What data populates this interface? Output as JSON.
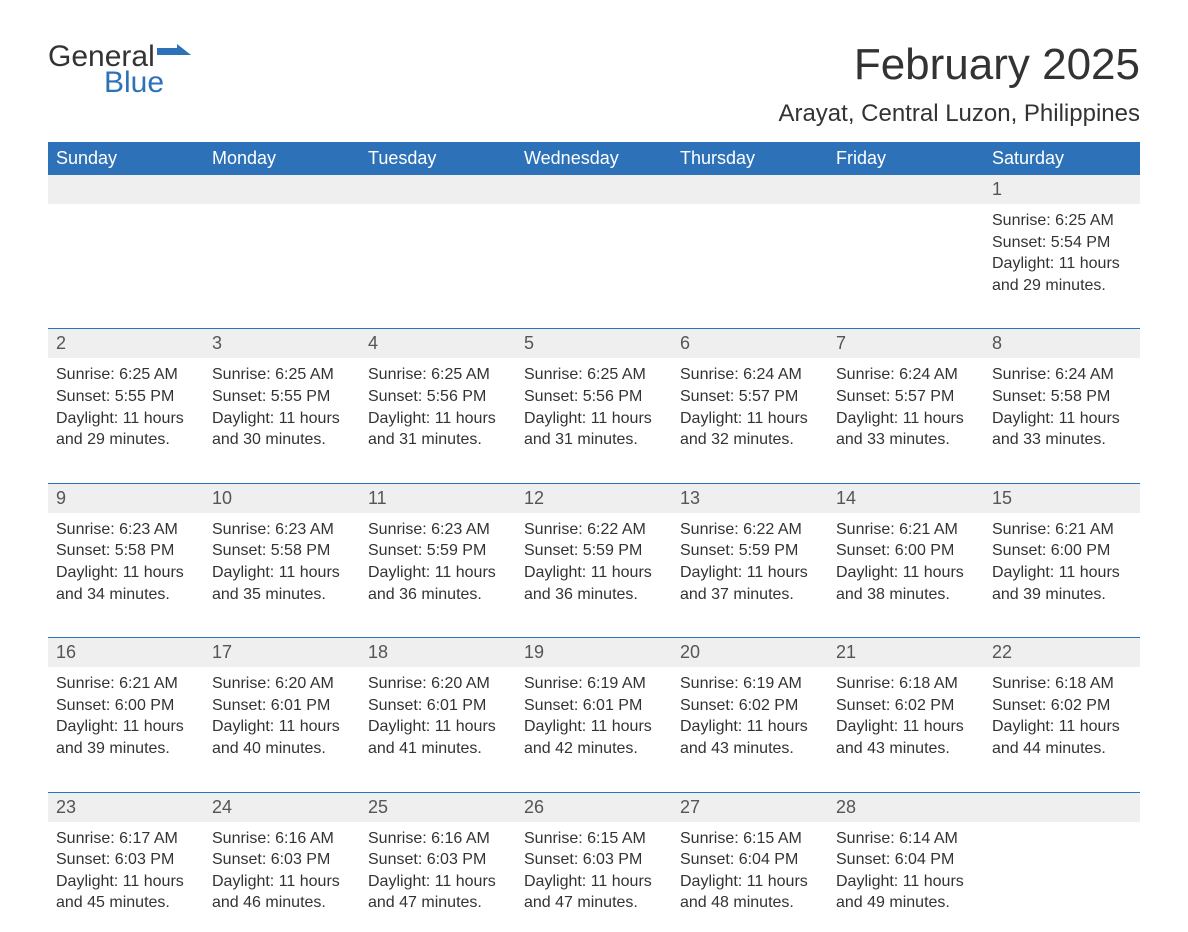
{
  "logo": {
    "word1": "General",
    "word2": "Blue",
    "flag_color": "#2d72b8"
  },
  "title": "February 2025",
  "location": "Arayat, Central Luzon, Philippines",
  "colors": {
    "header_bg": "#2d72b8",
    "header_text": "#ffffff",
    "date_row_bg": "#efefef",
    "body_text": "#333333",
    "date_text": "#555555",
    "rule": "#2d72b8",
    "background": "#ffffff"
  },
  "fonts": {
    "title_pt": 44,
    "location_pt": 24,
    "dayheader_pt": 18,
    "datenum_pt": 18,
    "body_pt": 16
  },
  "day_labels": [
    "Sunday",
    "Monday",
    "Tuesday",
    "Wednesday",
    "Thursday",
    "Friday",
    "Saturday"
  ],
  "labels": {
    "sunrise_prefix": "Sunrise: ",
    "sunset_prefix": "Sunset: ",
    "daylight_prefix": "Daylight: ",
    "hours_word": " hours",
    "and_word": "and ",
    "minutes_suffix": " minutes."
  },
  "weeks": [
    [
      null,
      null,
      null,
      null,
      null,
      null,
      {
        "n": "1",
        "sunrise": "6:25 AM",
        "sunset": "5:54 PM",
        "dl_h": "11",
        "dl_m": "29"
      }
    ],
    [
      {
        "n": "2",
        "sunrise": "6:25 AM",
        "sunset": "5:55 PM",
        "dl_h": "11",
        "dl_m": "29"
      },
      {
        "n": "3",
        "sunrise": "6:25 AM",
        "sunset": "5:55 PM",
        "dl_h": "11",
        "dl_m": "30"
      },
      {
        "n": "4",
        "sunrise": "6:25 AM",
        "sunset": "5:56 PM",
        "dl_h": "11",
        "dl_m": "31"
      },
      {
        "n": "5",
        "sunrise": "6:25 AM",
        "sunset": "5:56 PM",
        "dl_h": "11",
        "dl_m": "31"
      },
      {
        "n": "6",
        "sunrise": "6:24 AM",
        "sunset": "5:57 PM",
        "dl_h": "11",
        "dl_m": "32"
      },
      {
        "n": "7",
        "sunrise": "6:24 AM",
        "sunset": "5:57 PM",
        "dl_h": "11",
        "dl_m": "33"
      },
      {
        "n": "8",
        "sunrise": "6:24 AM",
        "sunset": "5:58 PM",
        "dl_h": "11",
        "dl_m": "33"
      }
    ],
    [
      {
        "n": "9",
        "sunrise": "6:23 AM",
        "sunset": "5:58 PM",
        "dl_h": "11",
        "dl_m": "34"
      },
      {
        "n": "10",
        "sunrise": "6:23 AM",
        "sunset": "5:58 PM",
        "dl_h": "11",
        "dl_m": "35"
      },
      {
        "n": "11",
        "sunrise": "6:23 AM",
        "sunset": "5:59 PM",
        "dl_h": "11",
        "dl_m": "36"
      },
      {
        "n": "12",
        "sunrise": "6:22 AM",
        "sunset": "5:59 PM",
        "dl_h": "11",
        "dl_m": "36"
      },
      {
        "n": "13",
        "sunrise": "6:22 AM",
        "sunset": "5:59 PM",
        "dl_h": "11",
        "dl_m": "37"
      },
      {
        "n": "14",
        "sunrise": "6:21 AM",
        "sunset": "6:00 PM",
        "dl_h": "11",
        "dl_m": "38"
      },
      {
        "n": "15",
        "sunrise": "6:21 AM",
        "sunset": "6:00 PM",
        "dl_h": "11",
        "dl_m": "39"
      }
    ],
    [
      {
        "n": "16",
        "sunrise": "6:21 AM",
        "sunset": "6:00 PM",
        "dl_h": "11",
        "dl_m": "39"
      },
      {
        "n": "17",
        "sunrise": "6:20 AM",
        "sunset": "6:01 PM",
        "dl_h": "11",
        "dl_m": "40"
      },
      {
        "n": "18",
        "sunrise": "6:20 AM",
        "sunset": "6:01 PM",
        "dl_h": "11",
        "dl_m": "41"
      },
      {
        "n": "19",
        "sunrise": "6:19 AM",
        "sunset": "6:01 PM",
        "dl_h": "11",
        "dl_m": "42"
      },
      {
        "n": "20",
        "sunrise": "6:19 AM",
        "sunset": "6:02 PM",
        "dl_h": "11",
        "dl_m": "43"
      },
      {
        "n": "21",
        "sunrise": "6:18 AM",
        "sunset": "6:02 PM",
        "dl_h": "11",
        "dl_m": "43"
      },
      {
        "n": "22",
        "sunrise": "6:18 AM",
        "sunset": "6:02 PM",
        "dl_h": "11",
        "dl_m": "44"
      }
    ],
    [
      {
        "n": "23",
        "sunrise": "6:17 AM",
        "sunset": "6:03 PM",
        "dl_h": "11",
        "dl_m": "45"
      },
      {
        "n": "24",
        "sunrise": "6:16 AM",
        "sunset": "6:03 PM",
        "dl_h": "11",
        "dl_m": "46"
      },
      {
        "n": "25",
        "sunrise": "6:16 AM",
        "sunset": "6:03 PM",
        "dl_h": "11",
        "dl_m": "47"
      },
      {
        "n": "26",
        "sunrise": "6:15 AM",
        "sunset": "6:03 PM",
        "dl_h": "11",
        "dl_m": "47"
      },
      {
        "n": "27",
        "sunrise": "6:15 AM",
        "sunset": "6:04 PM",
        "dl_h": "11",
        "dl_m": "48"
      },
      {
        "n": "28",
        "sunrise": "6:14 AM",
        "sunset": "6:04 PM",
        "dl_h": "11",
        "dl_m": "49"
      },
      null
    ]
  ]
}
